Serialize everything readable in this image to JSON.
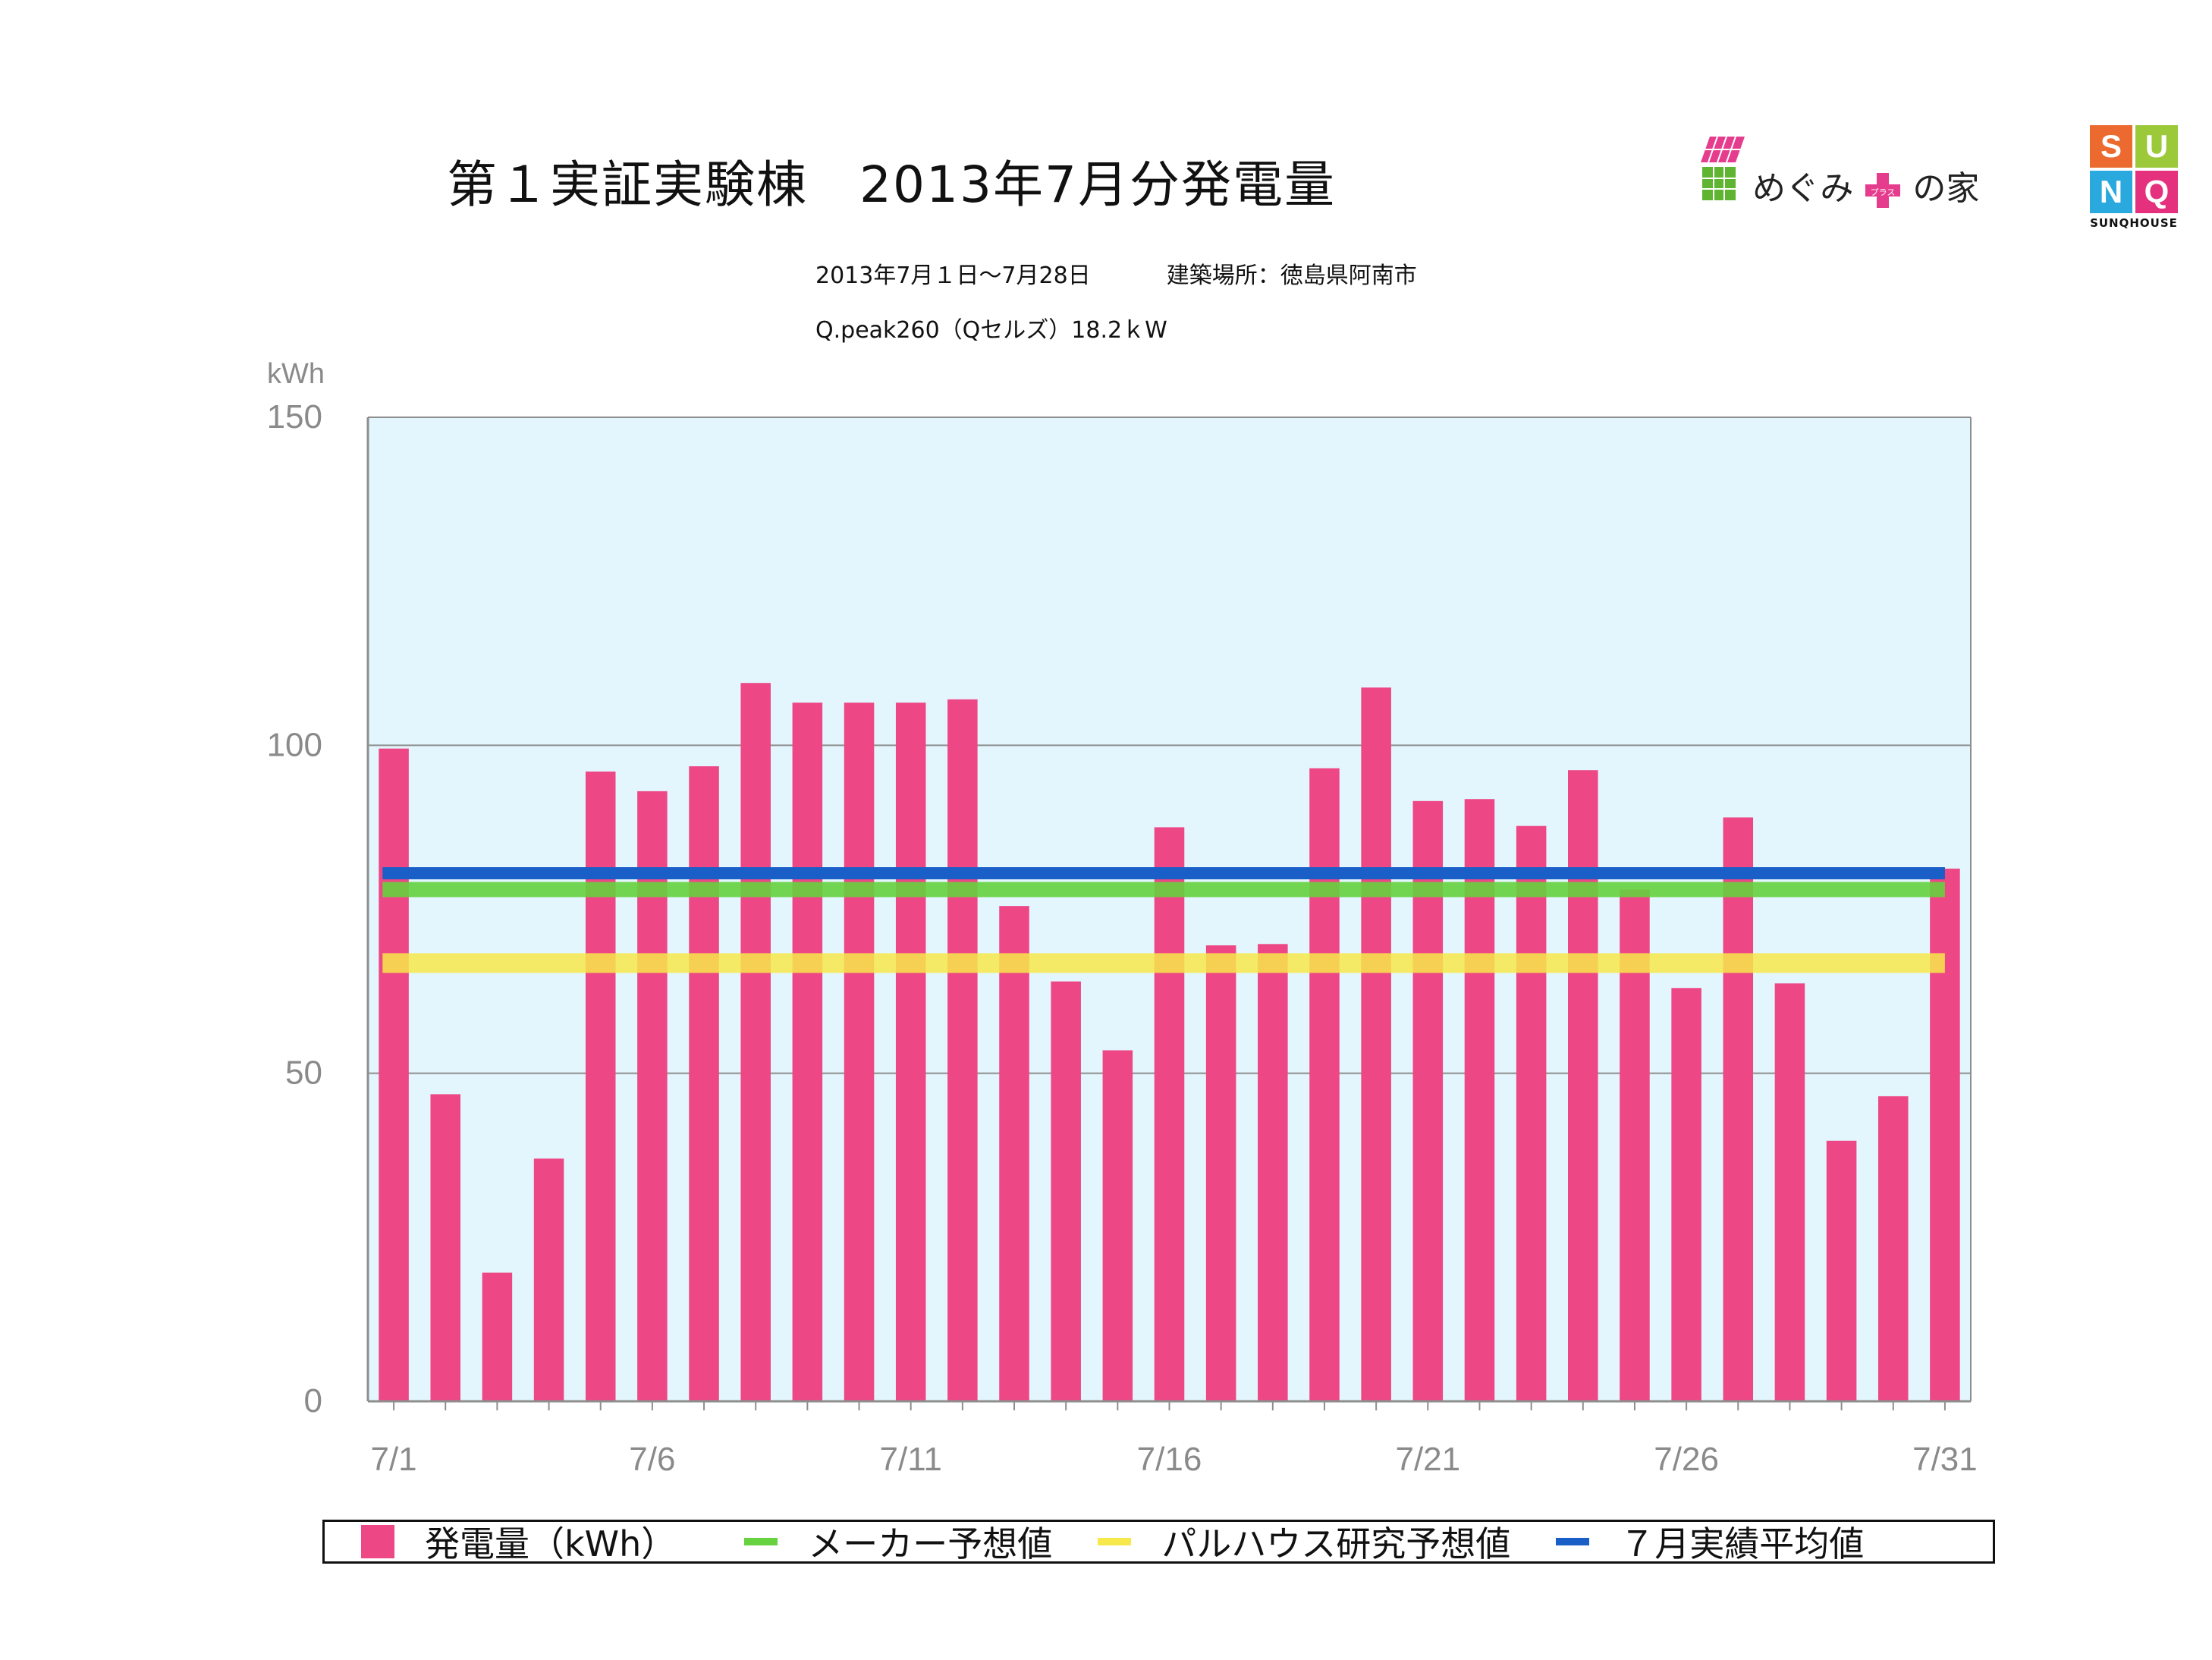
{
  "header": {
    "title": "第１実証実験棟　2013年7月分発電量",
    "subtitle_period": "2013年7月１日〜7月28日",
    "subtitle_location": "建築場所：徳島県阿南市",
    "subtitle_panel": "Q.peak260（Qセルズ）18.2ｋW"
  },
  "logos": {
    "megumi_text": "めぐみ",
    "megumi_plus": "プラス",
    "megumi_text2": "の家",
    "sunq_letters": [
      "S",
      "U",
      "N",
      "Q"
    ],
    "sunq_brand": "SUNQHOUSE"
  },
  "colors": {
    "bar": "#EE4785",
    "plot_bg": "#E3F6FD",
    "maker": "#66D23F",
    "palhouse": "#F7E94B",
    "average": "#1A5FC8",
    "grid": "#8E8E8E",
    "axis_text": "#8A8A8A"
  },
  "chart_data": {
    "type": "bar",
    "ylabel": "kWh",
    "ylim": [
      0,
      150
    ],
    "yticks": [
      "0",
      "50",
      "100",
      "150"
    ],
    "categories": [
      "7/1",
      "7/2",
      "7/3",
      "7/4",
      "7/5",
      "7/6",
      "7/7",
      "7/8",
      "7/9",
      "7/10",
      "7/11",
      "7/12",
      "7/13",
      "7/14",
      "7/15",
      "7/16",
      "7/17",
      "7/18",
      "7/19",
      "7/20",
      "7/21",
      "7/22",
      "7/23",
      "7/24",
      "7/25",
      "7/26",
      "7/27",
      "7/28",
      "7/29",
      "7/30",
      "7/31"
    ],
    "xtick_labels": [
      "7/1",
      "7/6",
      "7/11",
      "7/16",
      "7/21",
      "7/26",
      "7/31"
    ],
    "series": [
      {
        "name": "発電量（kWh）",
        "values": [
          99.5,
          46.8,
          19.6,
          37.0,
          96.0,
          93.0,
          96.8,
          109.5,
          106.5,
          106.5,
          106.5,
          107.0,
          75.5,
          64.0,
          53.5,
          87.5,
          69.5,
          69.7,
          96.5,
          108.8,
          91.5,
          91.8,
          87.7,
          96.2,
          78.0,
          63.0,
          89.0,
          63.7,
          39.7,
          46.5,
          81.2
        ]
      }
    ],
    "reference_lines": [
      {
        "name": "メーカー予想値",
        "value": 78.0,
        "color": "#66D23F"
      },
      {
        "name": "パルハウス研究予想値",
        "value": 66.8,
        "color": "#F7E94B"
      },
      {
        "name": "７月実績平均値",
        "value": 80.5,
        "color": "#1A5FC8"
      }
    ],
    "legend": {
      "position": "bottom",
      "items": [
        "発電量（kWh）",
        "メーカー予想値",
        "パルハウス研究予想値",
        "７月実績平均値"
      ]
    },
    "grid": true
  }
}
